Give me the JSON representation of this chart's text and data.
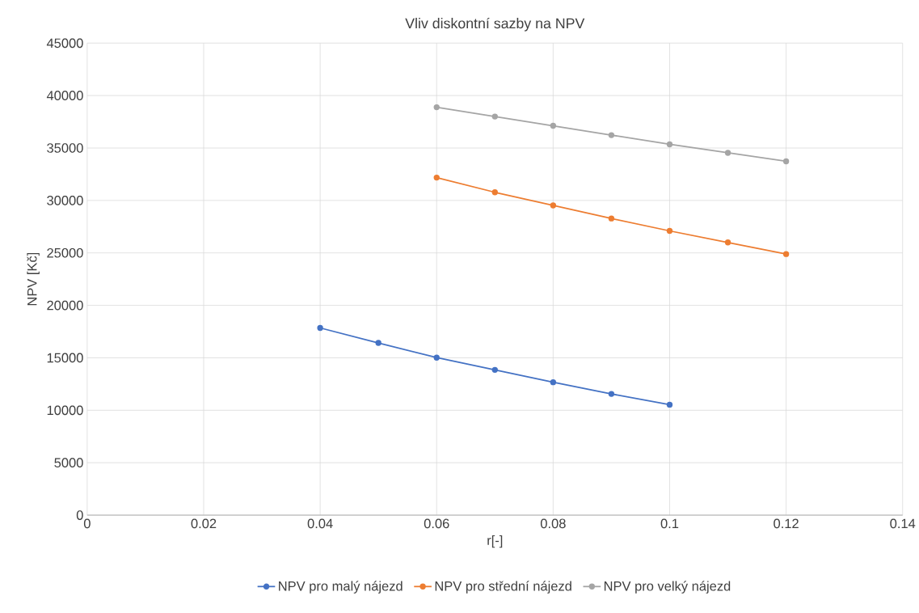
{
  "chart_data": {
    "type": "line",
    "title": "Vliv diskontní sazby na NPV",
    "xlabel": "r[-]",
    "ylabel": "NPV [Kč]",
    "xlim": [
      0,
      0.14
    ],
    "xticks": [
      0,
      0.02,
      0.04,
      0.06,
      0.08,
      0.1,
      0.12,
      0.14
    ],
    "ylim": [
      0,
      45000
    ],
    "yticks": [
      0,
      5000,
      10000,
      15000,
      20000,
      25000,
      30000,
      35000,
      40000,
      45000
    ],
    "grid": true,
    "legend": "bottom",
    "marker": "circle",
    "line_style": "solid",
    "series": [
      {
        "name": "NPV pro malý nájezd",
        "color": "#4472c4",
        "x": [
          0.04,
          0.05,
          0.06,
          0.07,
          0.08,
          0.09,
          0.1
        ],
        "values": [
          17850,
          16420,
          15020,
          13850,
          12670,
          11560,
          10530
        ]
      },
      {
        "name": "NPV pro střední nájezd",
        "color": "#ed7d31",
        "x": [
          0.06,
          0.07,
          0.08,
          0.09,
          0.1,
          0.11,
          0.12
        ],
        "values": [
          32180,
          30780,
          29530,
          28280,
          27100,
          26000,
          24890
        ]
      },
      {
        "name": "NPV pro velký nájezd",
        "color": "#a5a5a5",
        "x": [
          0.06,
          0.07,
          0.08,
          0.09,
          0.1,
          0.11,
          0.12
        ],
        "values": [
          38890,
          38000,
          37120,
          36230,
          35350,
          34540,
          33730
        ]
      }
    ]
  }
}
